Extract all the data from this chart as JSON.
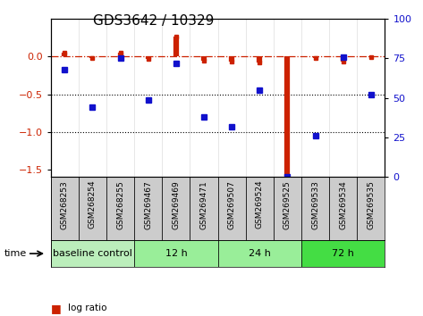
{
  "title": "GDS3642 / 10329",
  "samples": [
    "GSM268253",
    "GSM268254",
    "GSM268255",
    "GSM269467",
    "GSM269469",
    "GSM269471",
    "GSM269507",
    "GSM269524",
    "GSM269525",
    "GSM269533",
    "GSM269534",
    "GSM269535"
  ],
  "log_ratio": [
    0.05,
    -0.02,
    0.05,
    -0.03,
    0.27,
    -0.05,
    -0.07,
    -0.08,
    -1.58,
    -0.02,
    -0.07,
    -0.01
  ],
  "percentile_rank": [
    68,
    44,
    75,
    49,
    72,
    38,
    32,
    55,
    0,
    26,
    76,
    52
  ],
  "ylim_left": [
    -1.6,
    0.5
  ],
  "ylim_right": [
    0,
    100
  ],
  "yticks_left": [
    0.0,
    -0.5,
    -1.0,
    -1.5
  ],
  "yticks_right": [
    0,
    25,
    50,
    75,
    100
  ],
  "bar_color": "#CC2200",
  "dot_color": "#1111CC",
  "zero_line_color": "#CC2200",
  "hline_color": "black",
  "groups": [
    {
      "label": "baseline control",
      "indices": [
        0,
        1,
        2
      ],
      "color": "#bbeebb"
    },
    {
      "label": "12 h",
      "indices": [
        3,
        4,
        5
      ],
      "color": "#99ee99"
    },
    {
      "label": "24 h",
      "indices": [
        6,
        7,
        8
      ],
      "color": "#99ee99"
    },
    {
      "label": "72 h",
      "indices": [
        9,
        10,
        11
      ],
      "color": "#44dd44"
    }
  ],
  "sample_box_color": "#cccccc",
  "legend_log_ratio_color": "#CC2200",
  "legend_percentile_color": "#1111CC",
  "time_label": "time",
  "plot_bg_color": "#ffffff",
  "tick_label_fontsize": 6.5,
  "title_fontsize": 11,
  "group_fontsize": 8,
  "legend_fontsize": 7.5
}
